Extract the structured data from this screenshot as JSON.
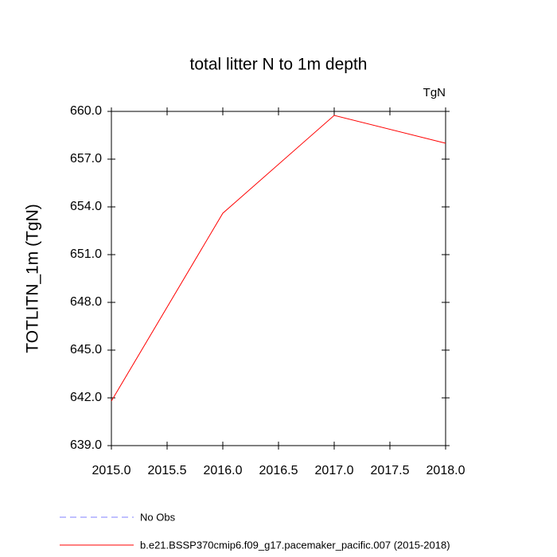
{
  "chart_data": {
    "type": "line",
    "title": "total litter N to 1m depth",
    "units": "TgN",
    "y_label": "TOTLITN_1m  (TgN)",
    "x": [
      2015,
      2016,
      2017,
      2018
    ],
    "series": [
      {
        "name": "No Obs",
        "color": "#8080ff",
        "dash": true,
        "values": [
          null,
          null,
          null,
          null
        ]
      },
      {
        "name": "b.e21.BSSP370cmip6.f09_g17.pacemaker_pacific.007 (2015-2018)",
        "color": "#ff0000",
        "dash": false,
        "values": [
          641.8,
          653.6,
          659.75,
          658.0
        ]
      }
    ],
    "xlim": [
      2015,
      2018
    ],
    "xticks": [
      {
        "value": 2015,
        "label": "2015.0"
      },
      {
        "value": 2015.5,
        "label": "2015.5"
      },
      {
        "value": 2016,
        "label": "2016.0"
      },
      {
        "value": 2016.5,
        "label": "2016.5"
      },
      {
        "value": 2017,
        "label": "2017.0"
      },
      {
        "value": 2017.5,
        "label": "2017.5"
      },
      {
        "value": 2018,
        "label": "2018.0"
      }
    ],
    "ylim": [
      639,
      660
    ],
    "yticks": [
      {
        "value": 639,
        "label": "639.0"
      },
      {
        "value": 642,
        "label": "642.0"
      },
      {
        "value": 645,
        "label": "645.0"
      },
      {
        "value": 648,
        "label": "648.0"
      },
      {
        "value": 651,
        "label": "651.0"
      },
      {
        "value": 654,
        "label": "654.0"
      },
      {
        "value": 657,
        "label": "657.0"
      },
      {
        "value": 660,
        "label": "660.0"
      }
    ]
  }
}
